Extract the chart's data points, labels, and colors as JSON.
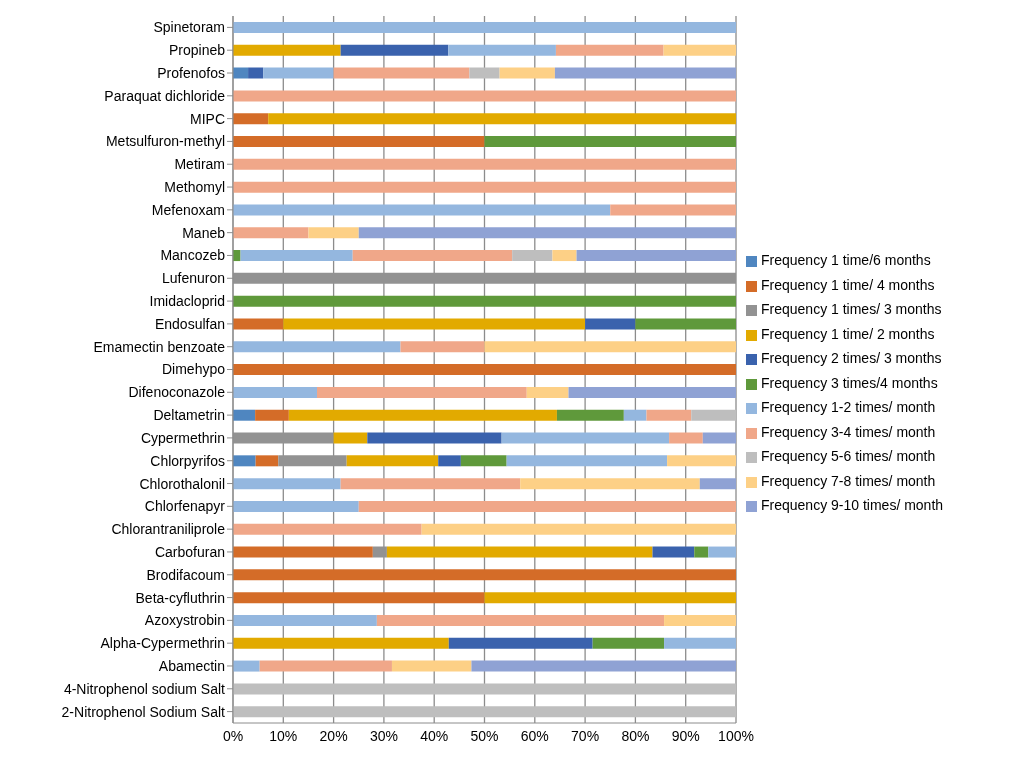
{
  "chart_data": {
    "type": "bar",
    "orientation": "horizontal",
    "stacked": true,
    "categories": [
      "Spinetoram",
      "Propineb",
      "Profenofos",
      "Paraquat dichloride",
      "MIPC",
      "Metsulfuron-methyl",
      "Metiram",
      "Methomyl",
      "Mefenoxam",
      "Maneb",
      "Mancozeb",
      "Lufenuron",
      "Imidacloprid",
      "Endosulfan",
      "Emamectin benzoate",
      "Dimehypo",
      "Difenoconazole",
      "Deltametrin",
      "Cypermethrin",
      "Chlorpyrifos",
      "Chlorothalonil",
      "Chlorfenapyr",
      "Chlorantraniliprole",
      "Carbofuran",
      "Brodifacoum",
      "Beta-cyfluthrin",
      "Azoxystrobin",
      "Alpha-Cypermethrin",
      "Abamectin",
      "4-Nitrophenol sodium Salt",
      "2-Nitrophenol Sodium Salt"
    ],
    "series": [
      {
        "name": "Frequency 1 time/6 months",
        "color": "#4f86c0",
        "values": [
          null,
          null,
          3,
          null,
          null,
          null,
          null,
          null,
          null,
          null,
          null,
          null,
          null,
          null,
          null,
          null,
          null,
          4.4,
          null,
          4.5,
          null,
          null,
          null,
          null,
          null,
          null,
          null,
          null,
          null,
          null,
          null
        ]
      },
      {
        "name": "Frequency 1 time/ 4 months",
        "color": "#d46c28",
        "values": [
          null,
          null,
          null,
          null,
          7,
          50,
          null,
          null,
          null,
          null,
          null,
          null,
          null,
          10,
          null,
          100,
          null,
          6.7,
          null,
          4.5,
          null,
          null,
          null,
          27.8,
          100,
          50,
          null,
          null,
          null,
          null,
          null
        ]
      },
      {
        "name": "Frequency 1 times/ 3 months",
        "color": "#929292",
        "values": [
          null,
          null,
          null,
          null,
          null,
          null,
          null,
          null,
          null,
          null,
          null,
          100,
          null,
          null,
          null,
          null,
          null,
          null,
          20,
          13.6,
          null,
          null,
          null,
          2.8,
          null,
          null,
          null,
          null,
          null,
          null,
          null
        ]
      },
      {
        "name": "Frequency 1 time/ 2 months",
        "color": "#e2aa00",
        "values": [
          null,
          21.4,
          null,
          null,
          93,
          null,
          null,
          null,
          null,
          null,
          null,
          null,
          null,
          60,
          null,
          null,
          null,
          53.3,
          6.7,
          18.2,
          null,
          null,
          null,
          52.8,
          null,
          50,
          null,
          42.9,
          null,
          null,
          null
        ]
      },
      {
        "name": "Frequency 2 times/ 3 months",
        "color": "#3a62ad",
        "values": [
          null,
          21.4,
          3,
          null,
          null,
          null,
          null,
          null,
          null,
          null,
          null,
          null,
          null,
          10,
          null,
          null,
          null,
          null,
          26.7,
          4.5,
          null,
          null,
          null,
          8.3,
          null,
          null,
          null,
          28.6,
          null,
          null,
          null
        ]
      },
      {
        "name": "Frequency 3 times/4 months",
        "color": "#5f993b",
        "values": [
          null,
          null,
          null,
          null,
          null,
          50,
          null,
          null,
          null,
          null,
          1.5,
          null,
          100,
          20,
          null,
          null,
          null,
          13.3,
          null,
          9.1,
          null,
          null,
          null,
          2.8,
          null,
          null,
          null,
          14.2,
          null,
          null,
          null
        ]
      },
      {
        "name": "Frequency 1-2 times/ month",
        "color": "#94b7df",
        "values": [
          100,
          21.4,
          14,
          null,
          null,
          null,
          null,
          null,
          75,
          null,
          22.3,
          null,
          null,
          null,
          33.3,
          null,
          16.7,
          4.5,
          33.3,
          31.9,
          21.4,
          25,
          null,
          5.5,
          null,
          null,
          28.6,
          14.3,
          5.3,
          null,
          null
        ]
      },
      {
        "name": "Frequency 3-4 times/ month",
        "color": "#f0a789",
        "values": [
          null,
          21.4,
          27,
          100,
          null,
          null,
          100,
          100,
          25,
          15,
          31.7,
          null,
          null,
          null,
          16.7,
          null,
          41.7,
          8.9,
          6.7,
          null,
          35.7,
          75,
          37.5,
          null,
          null,
          null,
          57.1,
          null,
          26.3,
          null,
          null
        ]
      },
      {
        "name": "Frequency 5-6 times/ month",
        "color": "#bebebe",
        "values": [
          null,
          null,
          6,
          null,
          null,
          null,
          null,
          null,
          null,
          null,
          8,
          null,
          null,
          null,
          null,
          null,
          null,
          8.9,
          null,
          null,
          null,
          null,
          null,
          null,
          null,
          null,
          null,
          null,
          null,
          100,
          100
        ]
      },
      {
        "name": "Frequency 7-8 times/ month",
        "color": "#fdd086",
        "values": [
          null,
          14.4,
          11,
          null,
          null,
          null,
          null,
          null,
          null,
          10,
          4.8,
          null,
          null,
          null,
          50,
          null,
          8.3,
          null,
          null,
          13.7,
          35.7,
          null,
          62.5,
          null,
          null,
          null,
          14.3,
          null,
          15.8,
          null,
          null
        ]
      },
      {
        "name": "Frequency 9-10 times/ month",
        "color": "#8fa2d4",
        "values": [
          null,
          null,
          36,
          null,
          null,
          null,
          null,
          null,
          null,
          75,
          31.7,
          null,
          null,
          null,
          null,
          null,
          33.3,
          null,
          6.6,
          null,
          7.2,
          null,
          null,
          null,
          null,
          null,
          null,
          null,
          52.6,
          null,
          null
        ]
      }
    ],
    "xlim": [
      0,
      100
    ],
    "xticks": [
      {
        "value": 0,
        "label": "0%"
      },
      {
        "value": 10,
        "label": "10%"
      },
      {
        "value": 20,
        "label": "20%"
      },
      {
        "value": 30,
        "label": "30%"
      },
      {
        "value": 40,
        "label": "40%"
      },
      {
        "value": 50,
        "label": "50%"
      },
      {
        "value": 60,
        "label": "60%"
      },
      {
        "value": 70,
        "label": "70%"
      },
      {
        "value": 80,
        "label": "80%"
      },
      {
        "value": 90,
        "label": "90%"
      },
      {
        "value": 100,
        "label": "100%"
      }
    ],
    "grid": "x",
    "legend": "right"
  }
}
